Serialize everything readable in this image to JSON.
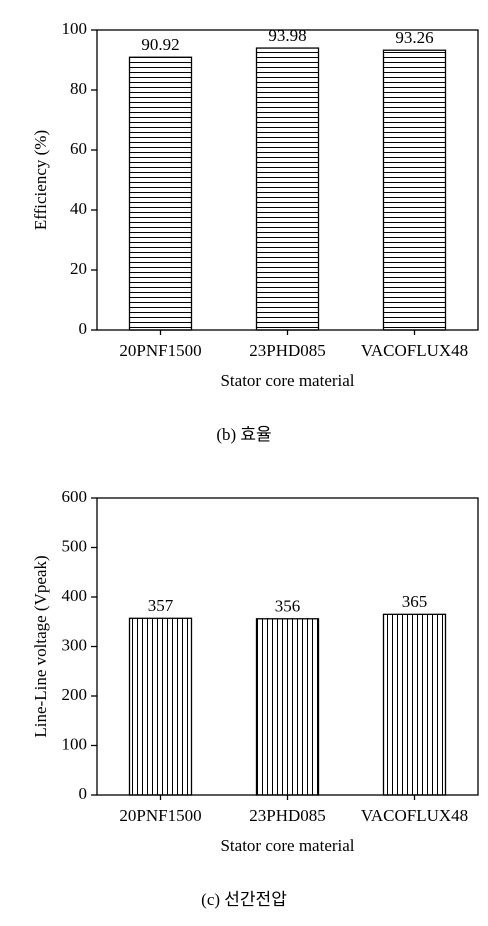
{
  "chart_data": [
    {
      "type": "bar",
      "caption": "(b)  효율",
      "xlabel": "Stator core material",
      "ylabel": "Efficiency (%)",
      "categories": [
        "20PNF1500",
        "23PHD085",
        "VACOFLUX48"
      ],
      "values": [
        90.92,
        93.98,
        93.26
      ],
      "color": "#000000",
      "hatch": "horizontal",
      "ylim": [
        0,
        100
      ],
      "yticks": [
        0,
        20,
        40,
        60,
        80,
        100
      ]
    },
    {
      "type": "bar",
      "caption": "(c)  선간전압",
      "xlabel": "Stator core material",
      "ylabel": "Line-Line voltage (Vpeak)",
      "categories": [
        "20PNF1500",
        "23PHD085",
        "VACOFLUX48"
      ],
      "values": [
        357,
        356,
        365
      ],
      "color": "#000000",
      "hatch": "vertical",
      "ylim": [
        0,
        600
      ],
      "yticks": [
        0,
        100,
        200,
        300,
        400,
        500,
        600
      ]
    }
  ]
}
